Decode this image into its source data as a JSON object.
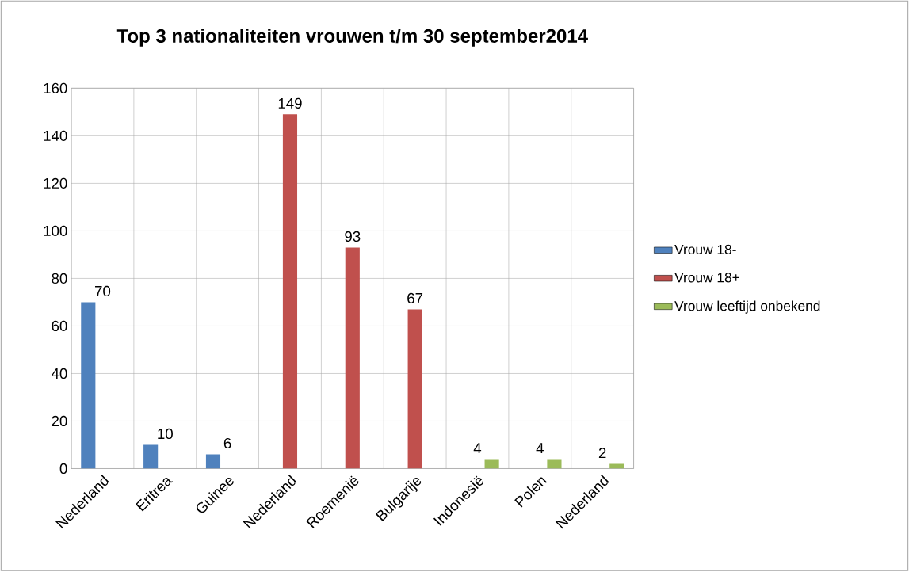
{
  "chart_data": {
    "type": "bar",
    "title": "Top 3 nationaliteiten vrouwen t/m 30 september2014",
    "categories": [
      "Nederland",
      "Eritrea",
      "Guinee",
      "Nederland",
      "Roemenië",
      "Bulgarije",
      "Indonesië",
      "Polen",
      "Nederland"
    ],
    "series": [
      {
        "name": "Vrouw 18-",
        "color": "#4f81bd",
        "values": [
          70,
          10,
          6,
          null,
          null,
          null,
          null,
          null,
          null
        ]
      },
      {
        "name": "Vrouw 18+",
        "color": "#c0504d",
        "values": [
          null,
          null,
          null,
          149,
          93,
          67,
          null,
          null,
          null
        ]
      },
      {
        "name": "Vrouw leeftijd onbekend",
        "color": "#9bbb59",
        "values": [
          null,
          null,
          null,
          null,
          null,
          null,
          4,
          4,
          2
        ]
      }
    ],
    "ylim": [
      0,
      160
    ],
    "yticks": [
      0,
      20,
      40,
      60,
      80,
      100,
      120,
      140,
      160
    ],
    "grid": true,
    "legend": "right",
    "data_labels": true
  }
}
